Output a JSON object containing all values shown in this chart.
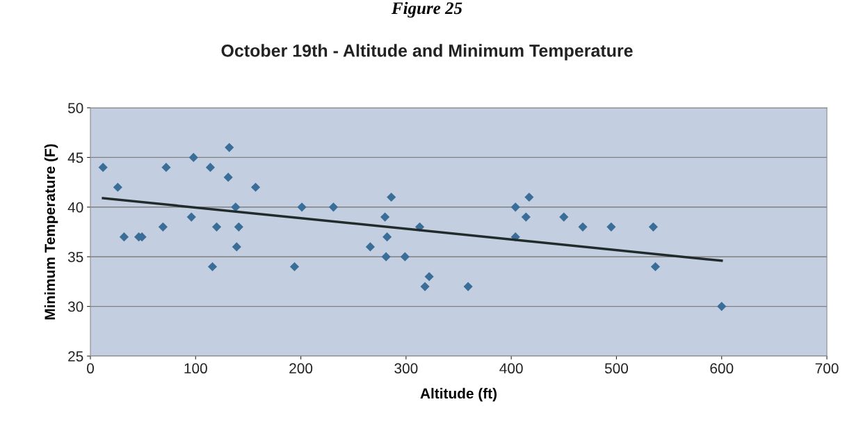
{
  "chart_data": {
    "type": "scatter",
    "title": "Figure 25",
    "subtitle": "October 19th - Altitude and Minimum Temperature",
    "xlabel": "Altitude (ft)",
    "ylabel": "Minimum Temperature (F)",
    "xlim": [
      0,
      700
    ],
    "xticks": [
      0,
      100,
      200,
      300,
      400,
      500,
      600,
      700
    ],
    "ylim": [
      25,
      50
    ],
    "yticks": [
      25,
      30,
      35,
      40,
      45,
      50
    ],
    "grid": "y",
    "legend": false,
    "series": [
      {
        "marker": "diamond",
        "color": "#3a6e98",
        "x": [
          12,
          26,
          32,
          46,
          49,
          69,
          72,
          96,
          98,
          114,
          116,
          120,
          132,
          131,
          138,
          139,
          141,
          157,
          194,
          201,
          231,
          266,
          280,
          282,
          281,
          286,
          299,
          313,
          318,
          322,
          359,
          404,
          404,
          414,
          417,
          450,
          468,
          495,
          535,
          537,
          600
        ],
        "values": [
          44,
          42,
          37,
          37,
          37,
          38,
          44,
          39,
          45,
          44,
          34,
          38,
          46,
          43,
          40,
          36,
          38,
          42,
          34,
          40,
          40,
          36,
          39,
          37,
          35,
          41,
          35,
          38,
          32,
          33,
          32,
          40,
          37,
          39,
          41,
          39,
          38,
          38,
          38,
          34,
          30
        ]
      },
      {
        "type": "line",
        "color": "#222b2b",
        "line_style": "solid",
        "x": [
          12,
          600
        ],
        "values": [
          40.9,
          34.6
        ]
      }
    ]
  }
}
